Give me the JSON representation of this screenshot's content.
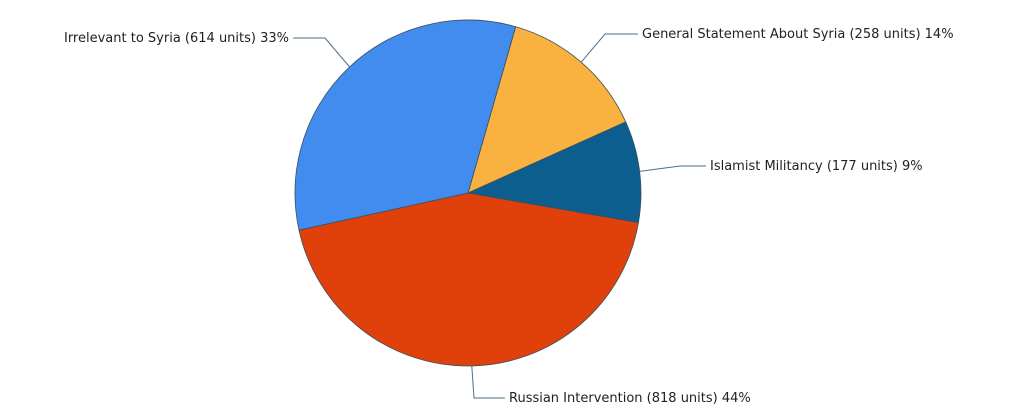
{
  "chart_data": {
    "type": "pie",
    "categories": [
      "General Statement About Syria",
      "Islamist Militancy",
      "Russian Intervention",
      "Irrelevant to Syria"
    ],
    "values": [
      258,
      177,
      818,
      614
    ],
    "value_labels": [
      "(258 units) 14%",
      "(177 units) 9%",
      "(818 units) 44%",
      "(614 units) 33%"
    ],
    "colors": [
      "#f9b13f",
      "#0b5e8e",
      "#e0400a",
      "#428bef"
    ]
  }
}
